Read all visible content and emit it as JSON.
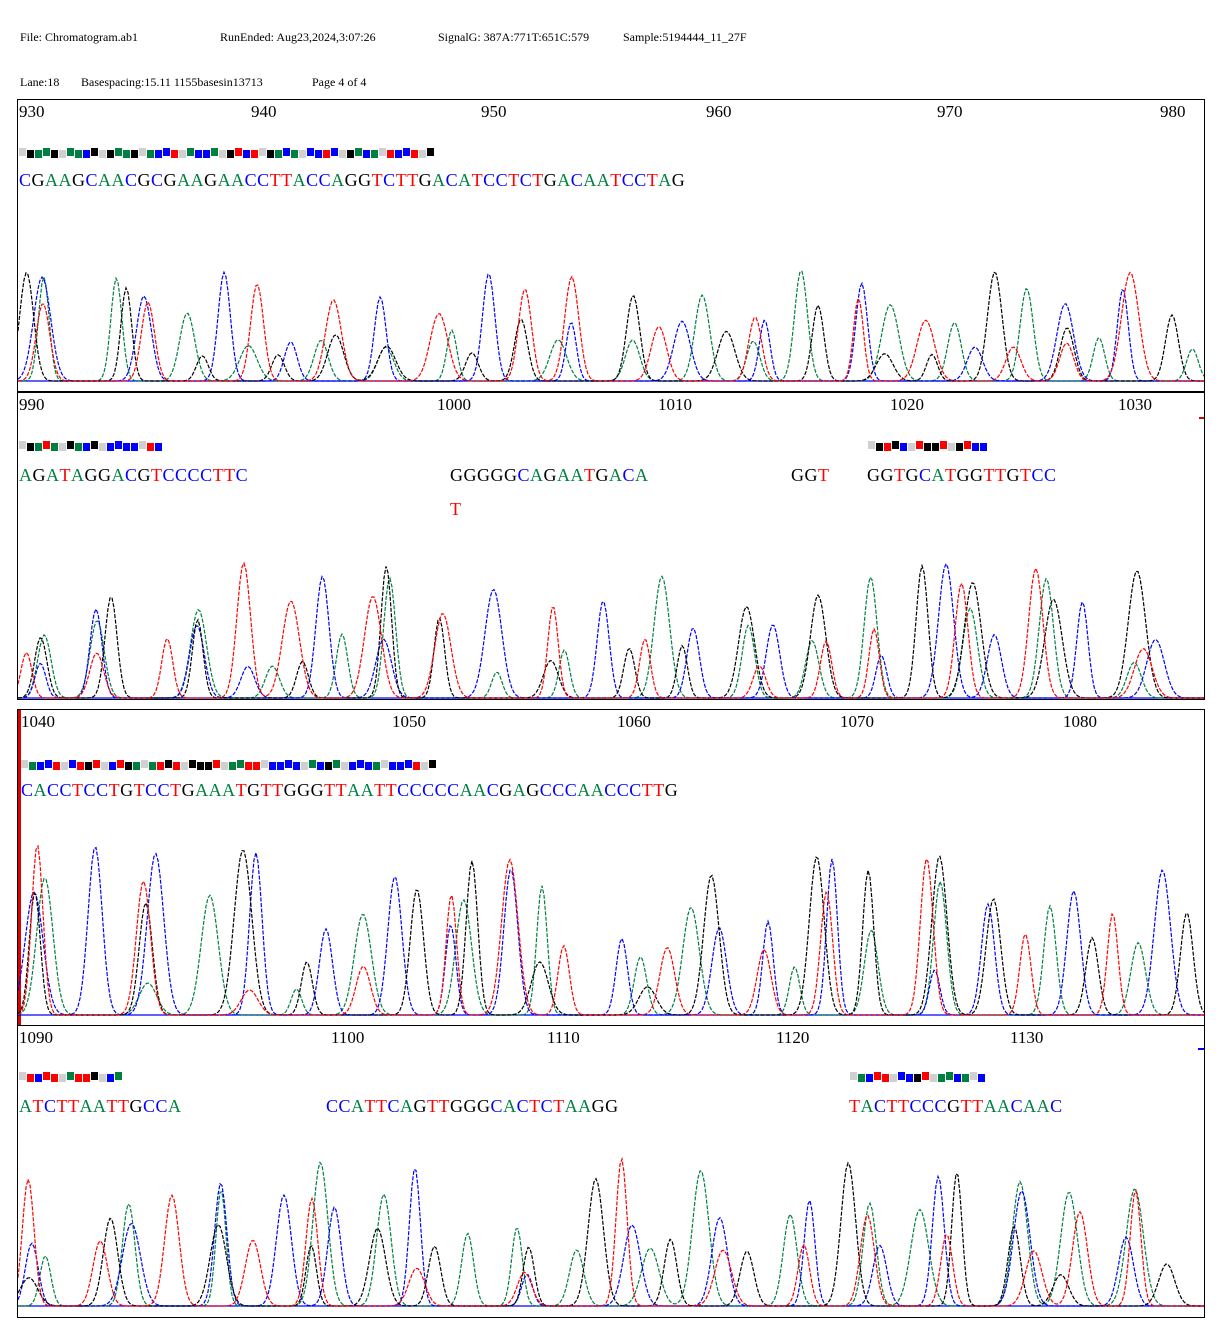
{
  "header": {
    "file": "File: Chromatogram.ab1",
    "run_ended": "RunEnded: Aug23,2024,3:07:26",
    "signal": "SignalG: 387A:771T:651C:579",
    "sample": "Sample:5194444_11_27F",
    "lane": "Lane:18",
    "basespacing": "Basespacing:15.11  1155basesin13713",
    "page": "Page 4 of 4"
  },
  "colors": {
    "A": "#008040",
    "C": "#0000ff",
    "G": "#000000",
    "T": "#ff0000",
    "baseline": "#0000ff",
    "quality_gray": "#d0d0d0"
  },
  "chart_data": [
    {
      "type": "line",
      "x_ticks": [
        "930",
        "940",
        "950",
        "960",
        "970",
        "980"
      ],
      "sequence_groups": [
        "CGAAGCAACGCGAAGAACCTTACCAGGTCTTGACATCCTCTGACAATCCTAG"
      ],
      "alternate_calls": [],
      "series": [
        {
          "name": "A"
        },
        {
          "name": "C"
        },
        {
          "name": "G"
        },
        {
          "name": "T"
        }
      ]
    },
    {
      "type": "line",
      "x_ticks": [
        "990",
        "1000",
        "1010",
        "1020",
        "1030"
      ],
      "sequence_groups": [
        "AGATAGGACGTCCCCTTC",
        "GGGGGCAGAATGACA",
        "GGT",
        "GGTGCATGGTTGTCC"
      ],
      "alternate_calls": [
        "T"
      ],
      "series": [
        {
          "name": "A"
        },
        {
          "name": "C"
        },
        {
          "name": "G"
        },
        {
          "name": "T"
        }
      ]
    },
    {
      "type": "line",
      "x_ticks": [
        "1040",
        "1050",
        "1060",
        "1070",
        "1080"
      ],
      "sequence_groups": [
        "CACCTCCTGTCCTGAAATGTTGGGTTAATTCCCCCAACGAGCCCAACCCTTG"
      ],
      "alternate_calls": [],
      "series": [
        {
          "name": "A"
        },
        {
          "name": "C"
        },
        {
          "name": "G"
        },
        {
          "name": "T"
        }
      ]
    },
    {
      "type": "line",
      "x_ticks": [
        "1090",
        "1100",
        "1110",
        "1120",
        "1130"
      ],
      "sequence_groups": [
        "ATCTTAATTGCCA",
        "CCATTCAGTTGGGCACTCTAAGG",
        "TACTTCCCGTTAACAAC"
      ],
      "alternate_calls": [],
      "series": [
        {
          "name": "A"
        },
        {
          "name": "C"
        },
        {
          "name": "G"
        },
        {
          "name": "T"
        }
      ]
    }
  ]
}
